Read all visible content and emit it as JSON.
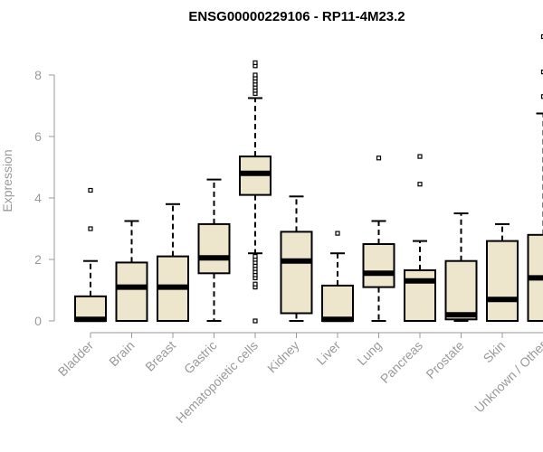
{
  "chart_data": {
    "type": "boxplot",
    "title": "ENSG00000229106 - RP11-4M23.2",
    "xlabel": "",
    "ylabel": "Expression",
    "ylim": [
      0,
      9.5
    ],
    "yticks": [
      0,
      2,
      4,
      6,
      8
    ],
    "box_fill": "#ede6cc",
    "outline_color": "#000000",
    "axis_color": "#9a9a9a",
    "grid": false,
    "categories": [
      "Bladder",
      "Brain",
      "Breast",
      "Gastric",
      "Hematopoietic cells",
      "Kidney",
      "Liver",
      "Lung",
      "Pancreas",
      "Prostate",
      "Skin",
      "Unknown / Other"
    ],
    "boxes": [
      {
        "min": 0,
        "q1": 0,
        "median": 0.05,
        "q3": 0.8,
        "max": 1.95,
        "outliers": [
          3.0,
          4.25
        ]
      },
      {
        "min": 0,
        "q1": 0,
        "median": 1.1,
        "q3": 1.9,
        "max": 3.25,
        "outliers": []
      },
      {
        "min": 0,
        "q1": 0,
        "median": 1.1,
        "q3": 2.1,
        "max": 3.8,
        "outliers": []
      },
      {
        "min": 0,
        "q1": 1.55,
        "median": 2.05,
        "q3": 3.15,
        "max": 4.6,
        "outliers": []
      },
      {
        "min": 2.2,
        "q1": 4.1,
        "median": 4.8,
        "q3": 5.35,
        "max": 7.25,
        "outliers": [
          0,
          1.1,
          1.2,
          1.4,
          1.5,
          1.6,
          1.7,
          1.8,
          1.9,
          2.0,
          2.1,
          7.4,
          7.5,
          7.6,
          7.7,
          7.8,
          7.9,
          8.0,
          8.3,
          8.4
        ]
      },
      {
        "min": 0,
        "q1": 0.25,
        "median": 1.95,
        "q3": 2.9,
        "max": 4.05,
        "outliers": []
      },
      {
        "min": 0,
        "q1": 0,
        "median": 0.05,
        "q3": 1.15,
        "max": 2.2,
        "outliers": [
          2.85
        ]
      },
      {
        "min": 0,
        "q1": 1.1,
        "median": 1.55,
        "q3": 2.5,
        "max": 3.25,
        "outliers": [
          5.3
        ]
      },
      {
        "min": 0,
        "q1": 0,
        "median": 1.3,
        "q3": 1.65,
        "max": 2.6,
        "outliers": [
          4.45,
          5.35
        ]
      },
      {
        "min": 0,
        "q1": 0.05,
        "median": 0.2,
        "q3": 1.95,
        "max": 3.5,
        "outliers": []
      },
      {
        "min": 0,
        "q1": 0,
        "median": 0.7,
        "q3": 2.6,
        "max": 3.15,
        "outliers": []
      },
      {
        "min": 0,
        "q1": 0,
        "median": 1.4,
        "q3": 2.8,
        "max": 6.75,
        "outliers": [
          7.3,
          8.1,
          9.25
        ]
      }
    ]
  }
}
